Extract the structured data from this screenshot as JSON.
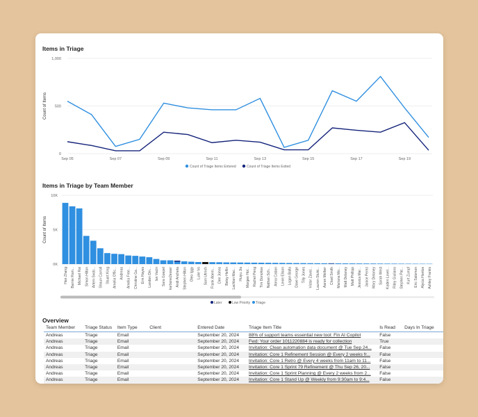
{
  "line_chart": {
    "title": "Items in Triage"
  },
  "bar_chart": {
    "title": "Items in Triage by Team Member"
  },
  "chart_data": [
    {
      "type": "line",
      "title": "Items in Triage",
      "ylabel": "Count of Items",
      "xlabel": "",
      "x": [
        "Sep 05",
        "Sep 06",
        "Sep 07",
        "Sep 08",
        "Sep 09",
        "Sep 10",
        "Sep 11",
        "Sep 12",
        "Sep 13",
        "Sep 14",
        "Sep 15",
        "Sep 16",
        "Sep 17",
        "Sep 18",
        "Sep 19",
        "Sep 20"
      ],
      "xtick_labels": [
        "Sep 05",
        "Sep 07",
        "Sep 09",
        "Sep 11",
        "Sep 13",
        "Sep 15",
        "Sep 17",
        "Sep 19"
      ],
      "yticks": [
        "0",
        "500",
        "1,000"
      ],
      "ylim": [
        0,
        1000
      ],
      "grid": true,
      "legend": "bottom",
      "series": [
        {
          "name": "Count of Triage Items Entered",
          "color": "#2f8fe0",
          "values": [
            550,
            410,
            75,
            150,
            530,
            480,
            460,
            460,
            580,
            65,
            140,
            660,
            550,
            810,
            480,
            170
          ]
        },
        {
          "name": "Count of Triage Items Exited",
          "color": "#14237a",
          "values": [
            125,
            85,
            30,
            30,
            225,
            200,
            115,
            140,
            120,
            40,
            40,
            270,
            245,
            225,
            325,
            35
          ]
        }
      ]
    },
    {
      "type": "bar",
      "stacked": true,
      "title": "Items in Triage by Team Member",
      "ylabel": "Count of Items",
      "xlabel": "",
      "yticks": [
        "0K",
        "5K",
        "10K"
      ],
      "ylim": [
        0,
        10000
      ],
      "grid": true,
      "legend": "bottom",
      "categories": [
        "Han Zhang",
        "Barnie Ram...",
        "Michael Rai",
        "Simon Hilton",
        "Artem Svob...",
        "Shaun Carroll",
        "Stuart King",
        "Amelia Offic...",
        "Andreas",
        "Amelia Free...",
        "Christine Ga...",
        "Erin Hayes",
        "Landon Din...",
        "Ian Vacin",
        "Sara Goepel",
        "karbone2esser",
        "Andi Ancheta",
        "Stephen Hilton",
        "Oleo Iggy",
        "Luke Vo",
        "Sam Utrech",
        "Frank Abem...",
        "Dee Johns",
        "Betsy Heflin",
        "Lachlan Mac...",
        "Huiyu Jia",
        "Margee Hol...",
        "Rachel Peng",
        "Tim Donohoe",
        "Nathan Sch...",
        "Anna Caban",
        "Lexie Elison",
        "Logan Balla",
        "Dave George",
        "Tilly Jones",
        "Victor Zaval...",
        "Lauren Stuht...",
        "Aaron Melber",
        "Chad Smith",
        "Mariana Mo...",
        "Matt Delaney",
        "Matt Phillipp",
        "Jessica Mar...",
        "Janice Perez",
        "Mary Delaney",
        "Sarah West",
        "Kaden Lovel...",
        "Riley Giuliano",
        "Stephen Pat...",
        "Kurt Zumpf",
        "Eric Salomon",
        "Alycia Hontos",
        "Ashley Franks"
      ],
      "series": [
        {
          "name": "Later",
          "color": "#14237a",
          "values": [
            0,
            0,
            0,
            0,
            0,
            0,
            0,
            0,
            0,
            0,
            0,
            0,
            0,
            0,
            0,
            0,
            150,
            0,
            0,
            0,
            0,
            0,
            0,
            0,
            0,
            0,
            0,
            0,
            0,
            0,
            0,
            0,
            0,
            0,
            0,
            0,
            0,
            0,
            60,
            0,
            0,
            0,
            0,
            0,
            0,
            0,
            0,
            0,
            0,
            0,
            0,
            0,
            0
          ]
        },
        {
          "name": "Low Priority",
          "color": "#111111",
          "values": [
            0,
            0,
            0,
            0,
            0,
            0,
            0,
            0,
            0,
            0,
            0,
            0,
            0,
            0,
            0,
            0,
            0,
            0,
            0,
            0,
            300,
            0,
            0,
            0,
            0,
            0,
            0,
            0,
            0,
            0,
            0,
            0,
            0,
            0,
            0,
            0,
            0,
            0,
            0,
            0,
            0,
            0,
            0,
            0,
            0,
            0,
            0,
            0,
            0,
            0,
            0,
            0,
            0
          ]
        },
        {
          "name": "Triage",
          "color": "#2f8fe0",
          "values": [
            8900,
            8400,
            8100,
            4100,
            3400,
            2300,
            1600,
            1500,
            1450,
            1250,
            1200,
            1100,
            1000,
            750,
            550,
            550,
            350,
            400,
            350,
            300,
            0,
            280,
            270,
            250,
            240,
            230,
            220,
            210,
            200,
            190,
            180,
            170,
            160,
            150,
            140,
            130,
            125,
            120,
            60,
            110,
            105,
            100,
            95,
            90,
            85,
            80,
            75,
            70,
            65,
            60,
            55,
            50,
            45
          ]
        }
      ]
    }
  ],
  "overview": {
    "title": "Overview",
    "columns": [
      "Team Member",
      "Triage Status",
      "Item Type",
      "Client",
      "Entered Date",
      "Triage Item Title",
      "Is Read",
      "Days In Triage"
    ],
    "rows": [
      [
        "Andreas",
        "Triage",
        "Email",
        "",
        "September 20, 2024",
        "88% of support teams essential new tool: Fin AI Copilot",
        "False",
        ""
      ],
      [
        "Andreas",
        "Triage",
        "Email",
        "",
        "September 20, 2024",
        "Fwd: Your order 1011220884 is ready for collection",
        "True",
        ""
      ],
      [
        "Andreas",
        "Triage",
        "Email",
        "",
        "September 20, 2024",
        "Invitation: Clean automation data document @ Tue Sep 24...",
        "False",
        ""
      ],
      [
        "Andreas",
        "Triage",
        "Email",
        "",
        "September 20, 2024",
        "Invitation: Core 1 Refinement Session  @ Every 2 weeks fr...",
        "False",
        ""
      ],
      [
        "Andreas",
        "Triage",
        "Email",
        "",
        "September 20, 2024",
        "Invitation: Core 1 Retro  @ Every 4 weeks from 11am to 11...",
        "False",
        ""
      ],
      [
        "Andreas",
        "Triage",
        "Email",
        "",
        "September 20, 2024",
        "Invitation: Core 1 Sprint 79 Refinement  @ Thu Sep 26, 20...",
        "False",
        ""
      ],
      [
        "Andreas",
        "Triage",
        "Email",
        "",
        "September 20, 2024",
        "Invitation: Core 1 Sprint Planning  @ Every 2 weeks from 2...",
        "False",
        ""
      ],
      [
        "Andreas",
        "Triage",
        "Email",
        "",
        "September 20, 2024",
        "Invitation: Core 1 Stand Up  @ Weekly from 9:30am to 9:4...",
        "False",
        ""
      ]
    ]
  }
}
